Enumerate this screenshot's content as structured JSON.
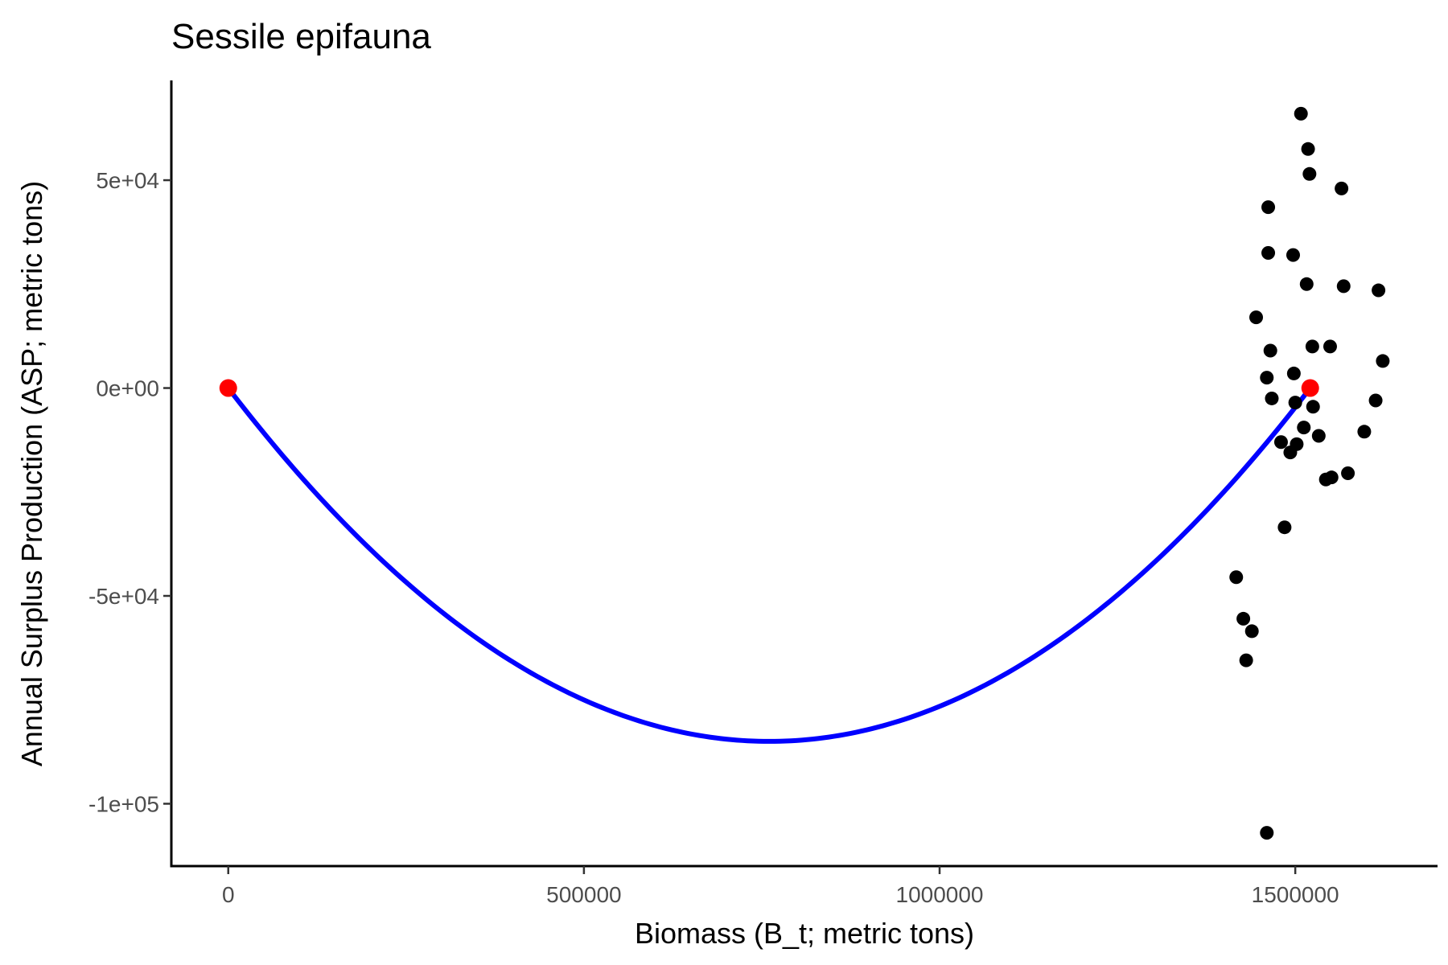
{
  "chart_data": {
    "type": "scatter",
    "title": "Sessile epifauna",
    "xlabel": "Biomass (B_t; metric tons)",
    "ylabel": "Annual Surplus Production (ASP; metric tons)",
    "xlim": [
      -80000,
      1700000
    ],
    "ylim": [
      -115000,
      74000
    ],
    "x_ticks": [
      {
        "value": 0,
        "label": "0"
      },
      {
        "value": 500000,
        "label": "500000"
      },
      {
        "value": 1000000,
        "label": "1000000"
      },
      {
        "value": 1500000,
        "label": "1500000"
      }
    ],
    "y_ticks": [
      {
        "value": 50000,
        "label": "5e+04"
      },
      {
        "value": 0,
        "label": "0e+00"
      },
      {
        "value": -50000,
        "label": "-5e+04"
      },
      {
        "value": -100000,
        "label": "-1e+05"
      }
    ],
    "grid": false,
    "legend": "none",
    "colors": {
      "points": "#000000",
      "curve": "#0000ff",
      "reference_points": "#ff0000"
    },
    "observations": {
      "x": [
        1508000,
        1518000,
        1520000,
        1565000,
        1462000,
        1462000,
        1497000,
        1516000,
        1568000,
        1617000,
        1445000,
        1524000,
        1549000,
        1623000,
        1465000,
        1460000,
        1498000,
        1500000,
        1467000,
        1525000,
        1613000,
        1512000,
        1597000,
        1533000,
        1480000,
        1502000,
        1493000,
        1574000,
        1551000,
        1543000,
        1485000,
        1417000,
        1427000,
        1439000,
        1431000,
        1460000
      ],
      "y": [
        66000,
        57500,
        51500,
        48000,
        43500,
        32500,
        32000,
        25000,
        24500,
        23500,
        17000,
        10000,
        10000,
        6500,
        9000,
        2500,
        3500,
        -3500,
        -2500,
        -4500,
        -3000,
        -9500,
        -10500,
        -11500,
        -13000,
        -13500,
        -15500,
        -20500,
        -21500,
        -22000,
        -33500,
        -45500,
        -55500,
        -58500,
        -65500,
        -107000
      ]
    },
    "curve": {
      "model": "ASP = 4 * MSY * (B/K) * (B/K - 1)",
      "K": 1521000,
      "MSY": -85000,
      "label": ""
    },
    "reference_points": {
      "x": [
        0,
        1521000
      ],
      "y": [
        0,
        0
      ]
    }
  }
}
